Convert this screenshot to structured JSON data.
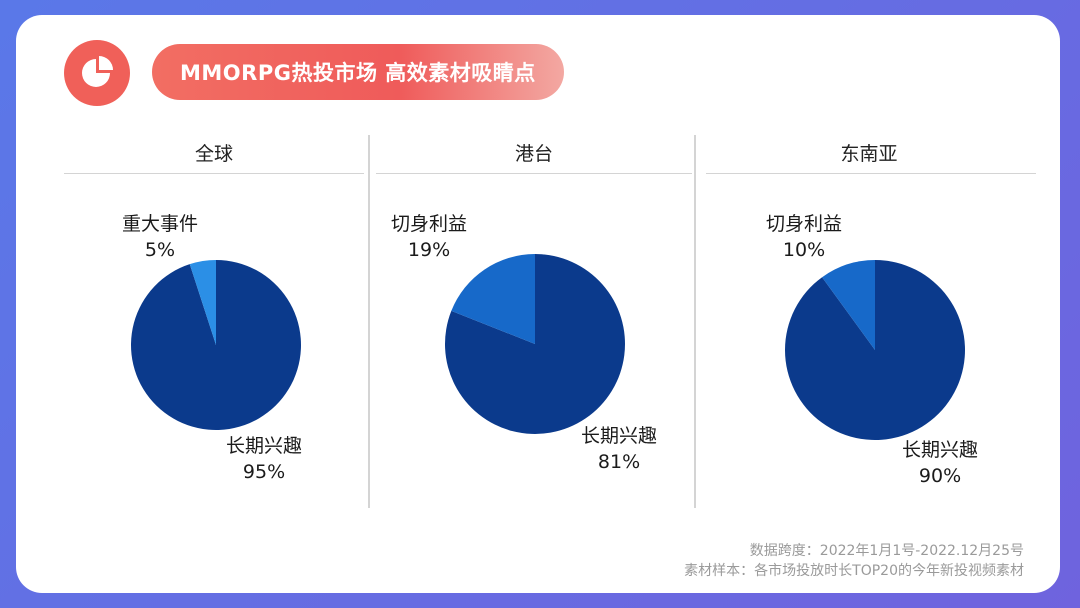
{
  "header": {
    "title": "MMORPG热投市场  高效素材吸睛点",
    "icon": "pie-chart-icon",
    "accent_color": "#ef5b5a"
  },
  "chart_data": [
    {
      "type": "pie",
      "title": "全球",
      "slices": [
        {
          "label": "长期兴趣",
          "value": 95,
          "display": "95%",
          "color": "#0b3a8c"
        },
        {
          "label": "重大事件",
          "value": 5,
          "display": "5%",
          "color": "#2b8fe6"
        }
      ]
    },
    {
      "type": "pie",
      "title": "港台",
      "slices": [
        {
          "label": "长期兴趣",
          "value": 81,
          "display": "81%",
          "color": "#0b3a8c"
        },
        {
          "label": "切身利益",
          "value": 19,
          "display": "19%",
          "color": "#1769c9"
        }
      ]
    },
    {
      "type": "pie",
      "title": "东南亚",
      "slices": [
        {
          "label": "长期兴趣",
          "value": 90,
          "display": "90%",
          "color": "#0b3a8c"
        },
        {
          "label": "切身利益",
          "value": 10,
          "display": "10%",
          "color": "#1769c9"
        }
      ]
    }
  ],
  "footnote": {
    "line1": "数据跨度：2022年1月1号-2022.12月25号",
    "line2": "素材样本：各市场投放时长TOP20的今年新投视频素材"
  }
}
